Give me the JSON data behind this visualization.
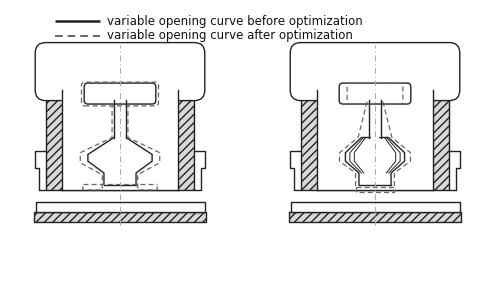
{
  "legend_solid_label": "variable opening curve before optimization",
  "legend_dash_label": "variable opening curve after optimization",
  "lc": "#222222",
  "dc": "#666666",
  "hatch_fc": "#d8d8d8",
  "bg": "#ffffff",
  "fig_w": 5.0,
  "fig_h": 2.9,
  "dpi": 100,
  "lw": 1.0,
  "dlw": 0.9
}
